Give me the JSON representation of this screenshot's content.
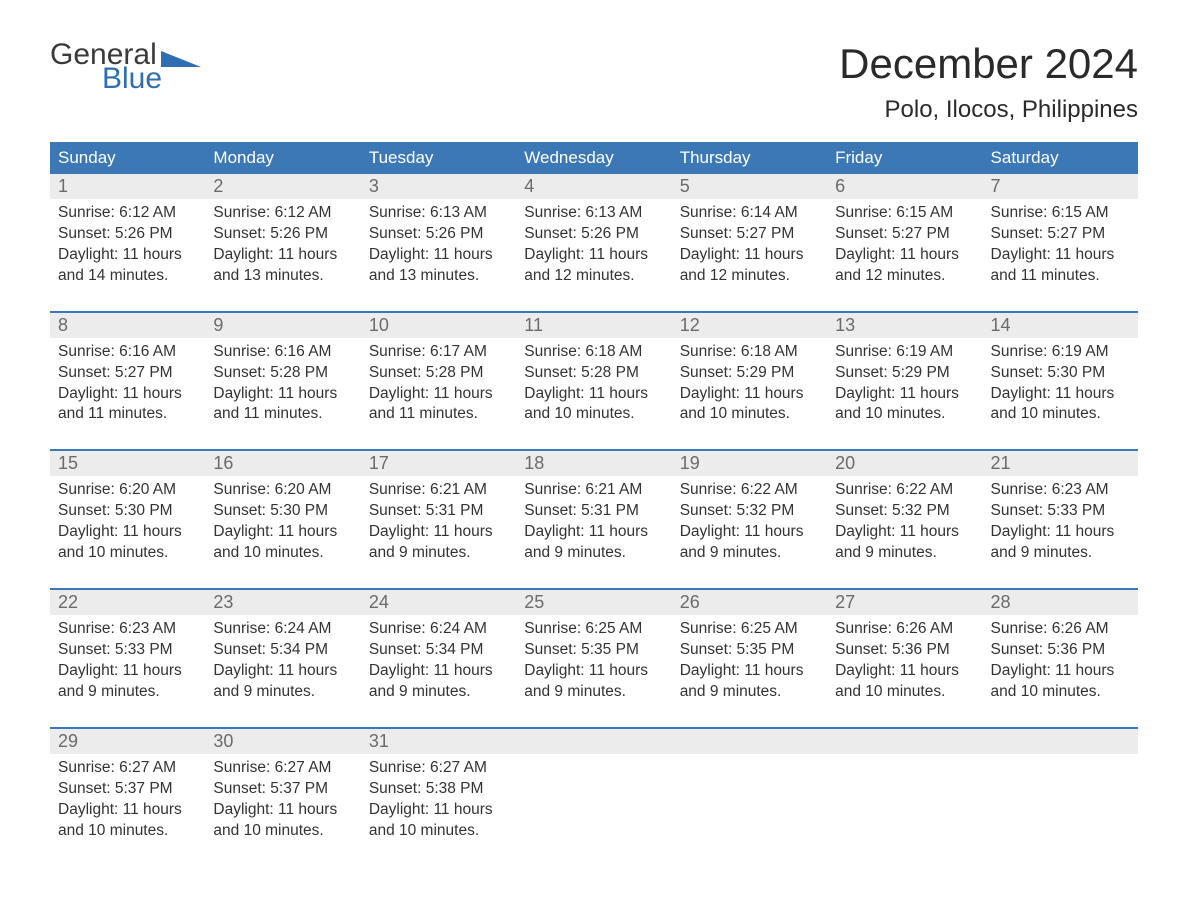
{
  "logo": {
    "text1": "General",
    "text2": "Blue"
  },
  "header": {
    "month_title": "December 2024",
    "location": "Polo, Ilocos, Philippines"
  },
  "colors": {
    "brand_blue": "#2f6eb0",
    "header_blue": "#3d78b6",
    "daynum_bg": "#ececec",
    "daynum_text": "#6b6b6b",
    "body_text": "#333333",
    "background": "#ffffff"
  },
  "day_headers": [
    "Sunday",
    "Monday",
    "Tuesday",
    "Wednesday",
    "Thursday",
    "Friday",
    "Saturday"
  ],
  "weeks": [
    [
      {
        "n": "1",
        "sr": "6:12 AM",
        "ss": "5:26 PM",
        "dl": "11 hours and 14 minutes."
      },
      {
        "n": "2",
        "sr": "6:12 AM",
        "ss": "5:26 PM",
        "dl": "11 hours and 13 minutes."
      },
      {
        "n": "3",
        "sr": "6:13 AM",
        "ss": "5:26 PM",
        "dl": "11 hours and 13 minutes."
      },
      {
        "n": "4",
        "sr": "6:13 AM",
        "ss": "5:26 PM",
        "dl": "11 hours and 12 minutes."
      },
      {
        "n": "5",
        "sr": "6:14 AM",
        "ss": "5:27 PM",
        "dl": "11 hours and 12 minutes."
      },
      {
        "n": "6",
        "sr": "6:15 AM",
        "ss": "5:27 PM",
        "dl": "11 hours and 12 minutes."
      },
      {
        "n": "7",
        "sr": "6:15 AM",
        "ss": "5:27 PM",
        "dl": "11 hours and 11 minutes."
      }
    ],
    [
      {
        "n": "8",
        "sr": "6:16 AM",
        "ss": "5:27 PM",
        "dl": "11 hours and 11 minutes."
      },
      {
        "n": "9",
        "sr": "6:16 AM",
        "ss": "5:28 PM",
        "dl": "11 hours and 11 minutes."
      },
      {
        "n": "10",
        "sr": "6:17 AM",
        "ss": "5:28 PM",
        "dl": "11 hours and 11 minutes."
      },
      {
        "n": "11",
        "sr": "6:18 AM",
        "ss": "5:28 PM",
        "dl": "11 hours and 10 minutes."
      },
      {
        "n": "12",
        "sr": "6:18 AM",
        "ss": "5:29 PM",
        "dl": "11 hours and 10 minutes."
      },
      {
        "n": "13",
        "sr": "6:19 AM",
        "ss": "5:29 PM",
        "dl": "11 hours and 10 minutes."
      },
      {
        "n": "14",
        "sr": "6:19 AM",
        "ss": "5:30 PM",
        "dl": "11 hours and 10 minutes."
      }
    ],
    [
      {
        "n": "15",
        "sr": "6:20 AM",
        "ss": "5:30 PM",
        "dl": "11 hours and 10 minutes."
      },
      {
        "n": "16",
        "sr": "6:20 AM",
        "ss": "5:30 PM",
        "dl": "11 hours and 10 minutes."
      },
      {
        "n": "17",
        "sr": "6:21 AM",
        "ss": "5:31 PM",
        "dl": "11 hours and 9 minutes."
      },
      {
        "n": "18",
        "sr": "6:21 AM",
        "ss": "5:31 PM",
        "dl": "11 hours and 9 minutes."
      },
      {
        "n": "19",
        "sr": "6:22 AM",
        "ss": "5:32 PM",
        "dl": "11 hours and 9 minutes."
      },
      {
        "n": "20",
        "sr": "6:22 AM",
        "ss": "5:32 PM",
        "dl": "11 hours and 9 minutes."
      },
      {
        "n": "21",
        "sr": "6:23 AM",
        "ss": "5:33 PM",
        "dl": "11 hours and 9 minutes."
      }
    ],
    [
      {
        "n": "22",
        "sr": "6:23 AM",
        "ss": "5:33 PM",
        "dl": "11 hours and 9 minutes."
      },
      {
        "n": "23",
        "sr": "6:24 AM",
        "ss": "5:34 PM",
        "dl": "11 hours and 9 minutes."
      },
      {
        "n": "24",
        "sr": "6:24 AM",
        "ss": "5:34 PM",
        "dl": "11 hours and 9 minutes."
      },
      {
        "n": "25",
        "sr": "6:25 AM",
        "ss": "5:35 PM",
        "dl": "11 hours and 9 minutes."
      },
      {
        "n": "26",
        "sr": "6:25 AM",
        "ss": "5:35 PM",
        "dl": "11 hours and 9 minutes."
      },
      {
        "n": "27",
        "sr": "6:26 AM",
        "ss": "5:36 PM",
        "dl": "11 hours and 10 minutes."
      },
      {
        "n": "28",
        "sr": "6:26 AM",
        "ss": "5:36 PM",
        "dl": "11 hours and 10 minutes."
      }
    ],
    [
      {
        "n": "29",
        "sr": "6:27 AM",
        "ss": "5:37 PM",
        "dl": "11 hours and 10 minutes."
      },
      {
        "n": "30",
        "sr": "6:27 AM",
        "ss": "5:37 PM",
        "dl": "11 hours and 10 minutes."
      },
      {
        "n": "31",
        "sr": "6:27 AM",
        "ss": "5:38 PM",
        "dl": "11 hours and 10 minutes."
      },
      null,
      null,
      null,
      null
    ]
  ],
  "labels": {
    "sunrise_prefix": "Sunrise: ",
    "sunset_prefix": "Sunset: ",
    "daylight_prefix": "Daylight: "
  }
}
